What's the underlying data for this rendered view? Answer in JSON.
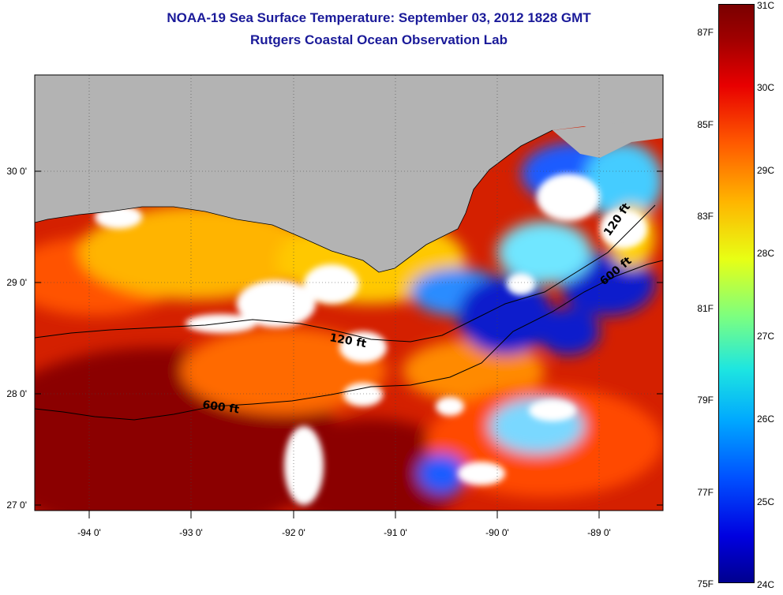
{
  "title": {
    "line1": "NOAA-19 Sea Surface Temperature:  September 03, 2012 1828 GMT",
    "line2": "Rutgers Coastal Ocean Observation Lab"
  },
  "map": {
    "lat_labels": [
      "30 0'",
      "29 0'",
      "28 0'",
      "27 0'"
    ],
    "lon_labels": [
      "-94 0'",
      "-93 0'",
      "-92 0'",
      "-91 0'",
      "-90 0'",
      "-89 0'"
    ],
    "contours": [
      {
        "label": "120 ft"
      },
      {
        "label": "600 ft"
      },
      {
        "label": "120 ft"
      },
      {
        "label": "600 ft"
      }
    ],
    "colors": {
      "land": "#b3b3b3",
      "cloud": "#ffffff",
      "warm": "#cc1a00",
      "hot": "#8b0000",
      "cold": "#0a1acc"
    }
  },
  "colorbar": {
    "fahrenheit": [
      "87F",
      "85F",
      "83F",
      "81F",
      "79F",
      "77F",
      "75F"
    ],
    "celsius": [
      "31C",
      "30C",
      "29C",
      "28C",
      "27C",
      "26C",
      "25C",
      "24C"
    ],
    "range_c": [
      24,
      31
    ]
  }
}
